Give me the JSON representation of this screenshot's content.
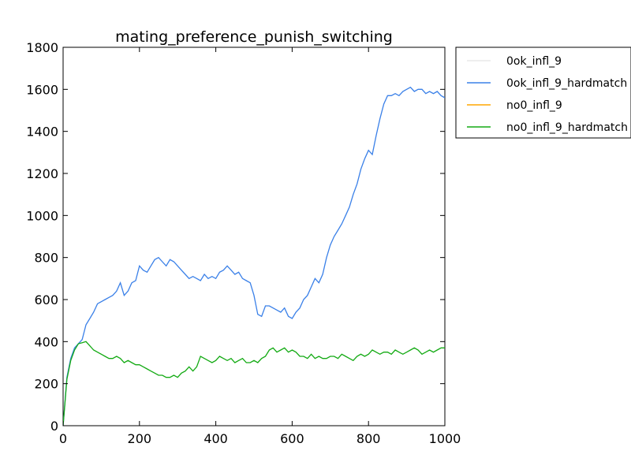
{
  "chart_data": {
    "type": "line",
    "title": "mating_preference_punish_switching",
    "xlabel": "",
    "ylabel": "",
    "xlim": [
      0,
      1000
    ],
    "ylim": [
      0,
      1800
    ],
    "x_ticks": [
      0,
      200,
      400,
      600,
      800,
      1000
    ],
    "y_ticks": [
      0,
      200,
      400,
      600,
      800,
      1000,
      1200,
      1400,
      1600,
      1800
    ],
    "grid": false,
    "legend_placement": "outside-top-right",
    "series": [
      {
        "name": "0ok_infl_9",
        "color": "#e8e8e8",
        "x": [],
        "values": []
      },
      {
        "name": "0ok_infl_9_hardmatch",
        "color": "#3a80e8",
        "x": [
          0,
          10,
          20,
          30,
          40,
          50,
          60,
          70,
          80,
          90,
          100,
          110,
          120,
          130,
          140,
          150,
          160,
          170,
          180,
          190,
          200,
          210,
          220,
          230,
          240,
          250,
          260,
          270,
          280,
          290,
          300,
          310,
          320,
          330,
          340,
          350,
          360,
          370,
          380,
          390,
          400,
          410,
          420,
          430,
          440,
          450,
          460,
          470,
          480,
          490,
          500,
          510,
          520,
          530,
          540,
          550,
          560,
          570,
          580,
          590,
          600,
          610,
          620,
          630,
          640,
          650,
          660,
          670,
          680,
          690,
          700,
          710,
          720,
          730,
          740,
          750,
          760,
          770,
          780,
          790,
          800,
          810,
          820,
          830,
          840,
          850,
          860,
          870,
          880,
          890,
          900,
          910,
          920,
          930,
          940,
          950,
          960,
          970,
          980,
          990,
          1000
        ],
        "values": [
          0,
          230,
          320,
          370,
          390,
          410,
          480,
          510,
          540,
          580,
          590,
          600,
          610,
          620,
          640,
          680,
          620,
          640,
          680,
          690,
          760,
          740,
          730,
          760,
          790,
          800,
          780,
          760,
          790,
          780,
          760,
          740,
          720,
          700,
          710,
          700,
          690,
          720,
          700,
          710,
          700,
          730,
          740,
          760,
          740,
          720,
          730,
          700,
          690,
          680,
          620,
          530,
          520,
          570,
          570,
          560,
          550,
          540,
          560,
          520,
          510,
          540,
          560,
          600,
          620,
          660,
          700,
          680,
          720,
          800,
          860,
          900,
          930,
          960,
          1000,
          1040,
          1100,
          1150,
          1220,
          1270,
          1310,
          1290,
          1380,
          1460,
          1530,
          1570,
          1570,
          1580,
          1570,
          1590,
          1600,
          1610,
          1590,
          1600,
          1600,
          1580,
          1590,
          1580,
          1590,
          1570,
          1560
        ]
      },
      {
        "name": "no0_infl_9",
        "color": "#ffa500",
        "x": [],
        "values": []
      },
      {
        "name": "no0_infl_9_hardmatch",
        "color": "#13aa13",
        "x": [
          0,
          10,
          20,
          30,
          40,
          50,
          60,
          70,
          80,
          90,
          100,
          110,
          120,
          130,
          140,
          150,
          160,
          170,
          180,
          190,
          200,
          210,
          220,
          230,
          240,
          250,
          260,
          270,
          280,
          290,
          300,
          310,
          320,
          330,
          340,
          350,
          360,
          370,
          380,
          390,
          400,
          410,
          420,
          430,
          440,
          450,
          460,
          470,
          480,
          490,
          500,
          510,
          520,
          530,
          540,
          550,
          560,
          570,
          580,
          590,
          600,
          610,
          620,
          630,
          640,
          650,
          660,
          670,
          680,
          690,
          700,
          710,
          720,
          730,
          740,
          750,
          760,
          770,
          780,
          790,
          800,
          810,
          820,
          830,
          840,
          850,
          860,
          870,
          880,
          890,
          900,
          910,
          920,
          930,
          940,
          950,
          960,
          970,
          980,
          990,
          1000
        ],
        "values": [
          0,
          220,
          310,
          360,
          390,
          395,
          400,
          380,
          360,
          350,
          340,
          330,
          320,
          320,
          330,
          320,
          300,
          310,
          300,
          290,
          290,
          280,
          270,
          260,
          250,
          240,
          240,
          230,
          230,
          240,
          230,
          250,
          260,
          280,
          260,
          280,
          330,
          320,
          310,
          300,
          310,
          330,
          320,
          310,
          320,
          300,
          310,
          320,
          300,
          300,
          310,
          300,
          320,
          330,
          360,
          370,
          350,
          360,
          370,
          350,
          360,
          350,
          330,
          330,
          320,
          340,
          320,
          330,
          320,
          320,
          330,
          330,
          320,
          340,
          330,
          320,
          310,
          330,
          340,
          330,
          340,
          360,
          350,
          340,
          350,
          350,
          340,
          360,
          350,
          340,
          350,
          360,
          370,
          360,
          340,
          350,
          360,
          350,
          360,
          370,
          370
        ]
      }
    ]
  }
}
